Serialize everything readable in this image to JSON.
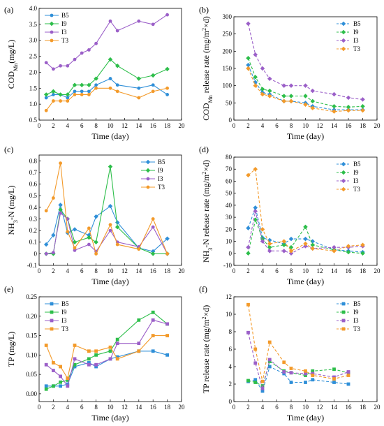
{
  "chart_data": [
    {
      "id": "a",
      "panel_label": "(a)",
      "type": "line",
      "line_style": "solid",
      "x_ticks": [
        0,
        2,
        4,
        6,
        8,
        10,
        12,
        14,
        16,
        18,
        20
      ],
      "xlim": [
        0,
        20
      ],
      "xlabel": "Time (day)",
      "ylabel": "COD",
      "ylabel_sub": "Mn",
      "ylabel_tail": "(mg/L)",
      "y_ticks": [
        0.5,
        1.0,
        1.5,
        2.0,
        2.5,
        3.0,
        3.5,
        4.0
      ],
      "y_tick_labels": [
        "0.5",
        "1.0",
        "1.5",
        "2.0",
        "2.5",
        "3.0",
        "3.5",
        "4.0"
      ],
      "ylim": [
        0.5,
        4.0
      ],
      "legend_loc": "top-left",
      "series": [
        {
          "name": "B5",
          "color": "#2f8fd8",
          "marker": "circle",
          "x": [
            1,
            2,
            3,
            4,
            5,
            6,
            7,
            8,
            10,
            11,
            14,
            16,
            18
          ],
          "y": [
            1.2,
            1.3,
            1.3,
            1.2,
            1.4,
            1.4,
            1.4,
            1.6,
            1.8,
            1.6,
            1.5,
            1.6,
            1.3
          ]
        },
        {
          "name": "I9",
          "color": "#2dbe4a",
          "marker": "diamond",
          "x": [
            1,
            2,
            3,
            4,
            5,
            6,
            7,
            8,
            10,
            11,
            14,
            16,
            18
          ],
          "y": [
            1.3,
            1.4,
            1.3,
            1.3,
            1.6,
            1.6,
            1.6,
            1.8,
            2.4,
            2.2,
            1.8,
            1.9,
            2.1
          ]
        },
        {
          "name": "I3",
          "color": "#9b5fc8",
          "marker": "circle",
          "x": [
            1,
            2,
            3,
            4,
            5,
            6,
            7,
            8,
            10,
            11,
            14,
            16,
            18
          ],
          "y": [
            2.3,
            2.1,
            2.2,
            2.2,
            2.4,
            2.6,
            2.7,
            2.9,
            3.6,
            3.3,
            3.6,
            3.5,
            3.8
          ]
        },
        {
          "name": "T3",
          "color": "#f39a2a",
          "marker": "circle",
          "x": [
            1,
            2,
            3,
            4,
            5,
            6,
            7,
            8,
            10,
            11,
            14,
            16,
            18
          ],
          "y": [
            0.8,
            1.1,
            1.1,
            1.1,
            1.3,
            1.3,
            1.3,
            1.5,
            1.5,
            1.4,
            1.2,
            1.4,
            1.5
          ]
        }
      ]
    },
    {
      "id": "b",
      "panel_label": "(b)",
      "type": "line",
      "line_style": "dashed",
      "x_ticks": [
        0,
        2,
        4,
        6,
        8,
        10,
        12,
        14,
        16,
        18,
        20
      ],
      "xlim": [
        0,
        20
      ],
      "xlabel": "Time (day)",
      "ylabel": "COD",
      "ylabel_sub": "Mn",
      "ylabel_tail": " release rate (mg/m",
      "ylabel_sup": "2",
      "ylabel_end": "×d)",
      "y_ticks": [
        0,
        50,
        100,
        150,
        200,
        250,
        300
      ],
      "y_tick_labels": [
        "0",
        "50",
        "100",
        "150",
        "200",
        "250",
        "300"
      ],
      "ylim": [
        0,
        300
      ],
      "legend_loc": "top-right",
      "series": [
        {
          "name": "B5",
          "color": "#2f8fd8",
          "marker": "diamond",
          "x": [
            2,
            3,
            4,
            5,
            7,
            8,
            10,
            11,
            14,
            16,
            18
          ],
          "y": [
            160,
            110,
            80,
            75,
            55,
            55,
            50,
            40,
            30,
            30,
            30
          ]
        },
        {
          "name": "I9",
          "color": "#2dbe4a",
          "marker": "diamond",
          "x": [
            2,
            3,
            4,
            5,
            7,
            8,
            10,
            11,
            14,
            16,
            18
          ],
          "y": [
            180,
            125,
            90,
            85,
            70,
            70,
            70,
            55,
            40,
            38,
            40
          ]
        },
        {
          "name": "I3",
          "color": "#9b5fc8",
          "marker": "diamond",
          "x": [
            2,
            3,
            4,
            5,
            7,
            8,
            10,
            11,
            14,
            16,
            18
          ],
          "y": [
            280,
            190,
            150,
            120,
            100,
            100,
            100,
            85,
            75,
            65,
            60
          ]
        },
        {
          "name": "T3",
          "color": "#f39a2a",
          "marker": "diamond",
          "x": [
            2,
            3,
            4,
            5,
            7,
            8,
            10,
            11,
            14,
            16,
            18
          ],
          "y": [
            150,
            100,
            75,
            70,
            55,
            55,
            45,
            35,
            25,
            28,
            28
          ]
        }
      ]
    },
    {
      "id": "c",
      "panel_label": "(c)",
      "type": "line",
      "line_style": "solid",
      "x_ticks": [
        0,
        2,
        4,
        6,
        8,
        10,
        12,
        14,
        16,
        18,
        20
      ],
      "xlim": [
        0,
        20
      ],
      "xlabel": "Time (day)",
      "ylabel": "NH",
      "ylabel_sub": "3",
      "ylabel_tail": "-N (mg/L)",
      "y_ticks": [
        -0.1,
        0,
        0.1,
        0.2,
        0.3,
        0.4,
        0.5,
        0.6,
        0.7,
        0.8
      ],
      "y_tick_labels": [
        "-0.1",
        "0",
        "0.1",
        "0.2",
        "0.3",
        "0.4",
        "0.5",
        "0.6",
        "0.7",
        "0.8"
      ],
      "ylim": [
        -0.1,
        0.85
      ],
      "legend_loc": "top-right",
      "series": [
        {
          "name": "B5",
          "color": "#2f8fd8",
          "marker": "diamond",
          "x": [
            1,
            2,
            3,
            4,
            5,
            7,
            8,
            10,
            11,
            14,
            16,
            18
          ],
          "y": [
            0.08,
            0.16,
            0.42,
            0.18,
            0.21,
            0.16,
            0.32,
            0.41,
            0.27,
            0.05,
            0.02,
            0.13
          ]
        },
        {
          "name": "I9",
          "color": "#2dbe4a",
          "marker": "diamond",
          "x": [
            1,
            2,
            3,
            4,
            5,
            7,
            8,
            10,
            11,
            14,
            16,
            18
          ],
          "y": [
            0.0,
            0.0,
            0.38,
            0.3,
            0.1,
            0.14,
            0.1,
            0.75,
            0.23,
            0.05,
            0.0,
            0.0
          ]
        },
        {
          "name": "I3",
          "color": "#9b5fc8",
          "marker": "circle",
          "x": [
            1,
            2,
            3,
            4,
            5,
            7,
            8,
            10,
            11,
            14,
            16,
            18
          ],
          "y": [
            0.0,
            0.01,
            0.35,
            0.3,
            0.03,
            0.08,
            0.02,
            0.2,
            0.1,
            0.06,
            0.23,
            0.0
          ]
        },
        {
          "name": "T3",
          "color": "#f39a2a",
          "marker": "circle",
          "x": [
            1,
            2,
            3,
            4,
            5,
            7,
            8,
            10,
            11,
            14,
            16,
            18
          ],
          "y": [
            0.37,
            0.48,
            0.78,
            0.19,
            0.05,
            0.22,
            0.0,
            0.25,
            0.08,
            0.04,
            0.3,
            0.0
          ]
        }
      ]
    },
    {
      "id": "d",
      "panel_label": "(d)",
      "type": "line",
      "line_style": "dashed",
      "x_ticks": [
        0,
        2,
        4,
        6,
        8,
        10,
        12,
        14,
        16,
        18,
        20
      ],
      "xlim": [
        0,
        20
      ],
      "xlabel": "Time (day)",
      "ylabel": "NH",
      "ylabel_sub": "3",
      "ylabel_tail": "-N release rate (mg/m",
      "ylabel_sup": "2",
      "ylabel_end": "×d)",
      "y_ticks": [
        -10,
        0,
        10,
        20,
        30,
        40,
        50,
        60,
        70,
        80
      ],
      "y_tick_labels": [
        "-10",
        "0",
        "10",
        "20",
        "30",
        "40",
        "50",
        "60",
        "70",
        "80"
      ],
      "ylim": [
        -10,
        80
      ],
      "legend_loc": "top-right",
      "series": [
        {
          "name": "B5",
          "color": "#2f8fd8",
          "marker": "diamond",
          "x": [
            2,
            3,
            4,
            5,
            7,
            8,
            10,
            11,
            14,
            16,
            18
          ],
          "y": [
            21,
            38,
            13,
            11,
            8,
            12,
            12,
            10,
            3,
            2,
            1
          ]
        },
        {
          "name": "I9",
          "color": "#2dbe4a",
          "marker": "diamond",
          "x": [
            2,
            3,
            4,
            5,
            7,
            8,
            10,
            11,
            14,
            16,
            18
          ],
          "y": [
            0,
            28,
            12,
            5,
            7,
            5,
            22,
            7,
            3,
            1,
            0
          ]
        },
        {
          "name": "I3",
          "color": "#9b5fc8",
          "marker": "diamond",
          "x": [
            2,
            3,
            4,
            5,
            7,
            8,
            10,
            11,
            14,
            16,
            18
          ],
          "y": [
            5,
            35,
            10,
            2,
            2,
            0,
            6,
            4,
            5,
            5,
            6
          ]
        },
        {
          "name": "T3",
          "color": "#f39a2a",
          "marker": "diamond",
          "x": [
            2,
            3,
            4,
            5,
            7,
            8,
            10,
            11,
            14,
            16,
            18
          ],
          "y": [
            65,
            70,
            20,
            8,
            10,
            2,
            8,
            4,
            2,
            6,
            7
          ]
        }
      ]
    },
    {
      "id": "e",
      "panel_label": "(e)",
      "type": "line",
      "line_style": "solid",
      "x_ticks": [
        0,
        2,
        4,
        6,
        8,
        10,
        12,
        14,
        16,
        18,
        20
      ],
      "xlim": [
        0,
        20
      ],
      "xlabel": "Time (day)",
      "ylabel": "TP (mg/L)",
      "y_ticks": [
        0.0,
        0.05,
        0.1,
        0.15,
        0.2,
        0.25
      ],
      "y_tick_labels": [
        "0.00",
        "0.05",
        "0.10",
        "0.15",
        "0.20",
        "0.25"
      ],
      "ylim": [
        -0.02,
        0.25
      ],
      "legend_loc": "top-left",
      "series": [
        {
          "name": "B5",
          "color": "#2f8fd8",
          "marker": "square",
          "x": [
            1,
            2,
            3,
            4,
            5,
            7,
            8,
            10,
            11,
            14,
            16,
            18
          ],
          "y": [
            0.02,
            0.02,
            0.02,
            0.025,
            0.07,
            0.08,
            0.07,
            0.09,
            0.095,
            0.11,
            0.11,
            0.1
          ]
        },
        {
          "name": "I9",
          "color": "#2dbe4a",
          "marker": "square",
          "x": [
            1,
            2,
            3,
            4,
            5,
            7,
            8,
            10,
            11,
            14,
            16,
            18
          ],
          "y": [
            0.012,
            0.02,
            0.03,
            0.035,
            0.075,
            0.09,
            0.1,
            0.11,
            0.14,
            0.19,
            0.21,
            0.18
          ]
        },
        {
          "name": "I3",
          "color": "#9b5fc8",
          "marker": "square",
          "x": [
            1,
            2,
            3,
            4,
            5,
            7,
            8,
            10,
            11,
            14,
            16,
            18
          ],
          "y": [
            0.075,
            0.06,
            0.045,
            0.02,
            0.09,
            0.075,
            0.075,
            0.09,
            0.13,
            0.13,
            0.19,
            0.18
          ]
        },
        {
          "name": "T3",
          "color": "#f39a2a",
          "marker": "square",
          "x": [
            1,
            2,
            3,
            4,
            5,
            7,
            8,
            10,
            11,
            14,
            16,
            18
          ],
          "y": [
            0.125,
            0.08,
            0.07,
            0.04,
            0.125,
            0.11,
            0.11,
            0.12,
            0.09,
            0.11,
            0.15,
            0.15
          ]
        }
      ]
    },
    {
      "id": "f",
      "panel_label": "(f)",
      "type": "line",
      "line_style": "dashed",
      "x_ticks": [
        0,
        2,
        4,
        6,
        8,
        10,
        12,
        14,
        16,
        18,
        20
      ],
      "xlim": [
        0,
        20
      ],
      "xlabel": "Time (day)",
      "ylabel": "TP release rate (mg/m",
      "ylabel_sup": "2",
      "ylabel_end": "×d)",
      "y_ticks": [
        0,
        2,
        4,
        6,
        8,
        10,
        12
      ],
      "y_tick_labels": [
        "0",
        "2",
        "4",
        "6",
        "8",
        "10",
        "12"
      ],
      "ylim": [
        0,
        12
      ],
      "legend_loc": "top-right",
      "series": [
        {
          "name": "B5",
          "color": "#2f8fd8",
          "marker": "square",
          "x": [
            2,
            3,
            4,
            5,
            7,
            8,
            10,
            11,
            14,
            16
          ],
          "y": [
            2.3,
            2.5,
            1.2,
            4.0,
            3.2,
            2.2,
            2.2,
            2.5,
            2.2,
            2.0
          ]
        },
        {
          "name": "I9",
          "color": "#2dbe4a",
          "marker": "square",
          "x": [
            2,
            3,
            4,
            5,
            7,
            8,
            10,
            11,
            14,
            16
          ],
          "y": [
            2.4,
            2.2,
            1.8,
            4.6,
            3.5,
            3.3,
            3.0,
            3.5,
            3.7,
            3.3
          ]
        },
        {
          "name": "I3",
          "color": "#9b5fc8",
          "marker": "square",
          "x": [
            2,
            3,
            4,
            5,
            7,
            8,
            10,
            11,
            14,
            16
          ],
          "y": [
            7.9,
            4.4,
            1.5,
            4.8,
            3.4,
            3.3,
            3.2,
            3.2,
            2.8,
            3.4
          ]
        },
        {
          "name": "T3",
          "color": "#f39a2a",
          "marker": "square",
          "x": [
            2,
            3,
            4,
            5,
            7,
            8,
            10,
            11,
            14,
            16
          ],
          "y": [
            11.1,
            6.0,
            2.3,
            6.8,
            4.5,
            3.8,
            3.5,
            3.0,
            2.6,
            3.0
          ]
        }
      ]
    }
  ]
}
